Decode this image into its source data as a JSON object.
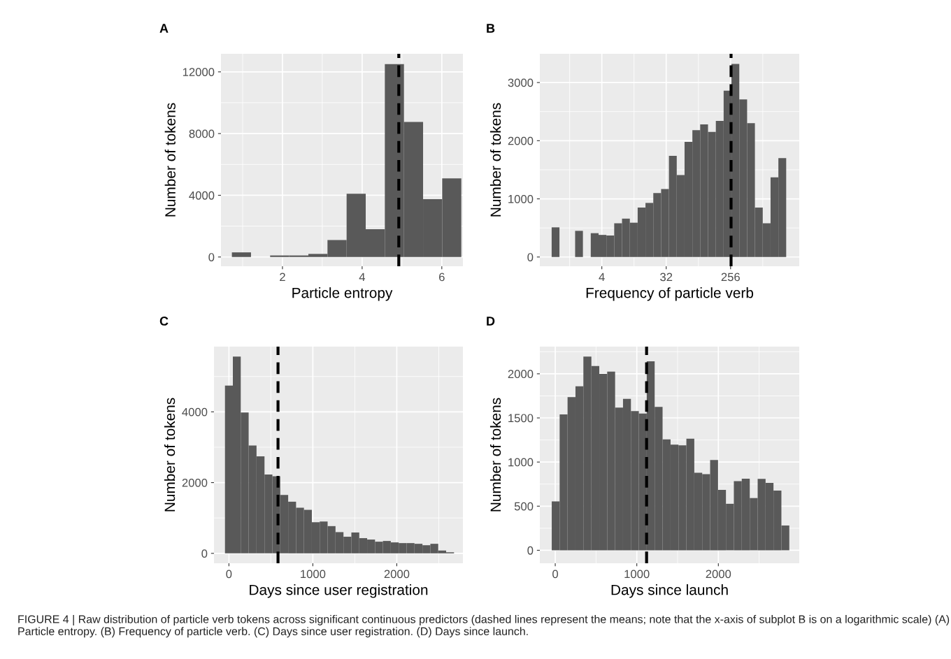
{
  "chart_data": [
    {
      "type": "histogram",
      "title": "A",
      "xlabel": "Particle entropy",
      "ylabel": "Number of tokens",
      "color": "#595959",
      "bins": [
        0.73,
        1.21,
        1.69,
        2.17,
        2.65,
        3.13,
        3.61,
        4.09,
        4.57,
        5.05,
        5.53,
        6.01,
        6.49
      ],
      "values": [
        300,
        0,
        100,
        100,
        200,
        1100,
        4100,
        1800,
        12500,
        8750,
        3750,
        5100
      ],
      "xlim": [
        0.456,
        6.53
      ],
      "ylim": [
        -600,
        13170
      ],
      "xticks": [
        2,
        4,
        6
      ],
      "yticks": [
        0,
        4000,
        8000,
        12000
      ],
      "grid": true,
      "ref_lines": [
        {
          "axis": "x",
          "value": 4.92,
          "color": "#000000",
          "line_style": "dashed"
        }
      ]
    },
    {
      "type": "histogram",
      "title": "B",
      "xlabel": "Frequency of particle verb",
      "ylabel": "Number of tokens",
      "color": "#595959",
      "log": "x",
      "bins": [
        0.791,
        1.018,
        1.311,
        1.688,
        2.172,
        2.797,
        3.6,
        4.633,
        5.966,
        7.679,
        9.884,
        12.73,
        16.38,
        21.09,
        27.14,
        34.95,
        44.97,
        57.89,
        74.54,
        95.94,
        123.5,
        159.0,
        204.6,
        263.4,
        339.1,
        436.5,
        561.8,
        723.5,
        931.2,
        1199,
        1543
      ],
      "values": [
        510,
        0,
        0,
        450,
        0,
        410,
        380,
        370,
        580,
        660,
        590,
        850,
        930,
        1100,
        1170,
        1740,
        1410,
        1980,
        2180,
        2280,
        2150,
        2340,
        2860,
        3320,
        2710,
        2300,
        850,
        580,
        1370,
        1700
      ],
      "xlim": [
        0.54,
        2353
      ],
      "ylim": [
        -159,
        3494
      ],
      "xticks": [
        4,
        32,
        256
      ],
      "yticks": [
        0,
        1000,
        2000,
        3000
      ],
      "grid": true,
      "ref_lines": [
        {
          "axis": "x",
          "value": 260,
          "color": "#000000",
          "line_style": "dashed"
        }
      ]
    },
    {
      "type": "histogram",
      "title": "C",
      "xlabel": "Days since user registration",
      "ylabel": "Number of tokens",
      "color": "#595959",
      "bins": [
        -47,
        47,
        141,
        235,
        329,
        424,
        518,
        612,
        706,
        800,
        894,
        988,
        1082,
        1176,
        1270,
        1365,
        1459,
        1553,
        1647,
        1741,
        1835,
        1929,
        2023,
        2117,
        2211,
        2306,
        2400,
        2494,
        2588,
        2682
      ],
      "values": [
        4740,
        5560,
        3980,
        3050,
        2740,
        2230,
        2180,
        1650,
        1460,
        1290,
        1230,
        880,
        900,
        770,
        600,
        470,
        590,
        430,
        390,
        330,
        350,
        310,
        290,
        290,
        270,
        230,
        270,
        80,
        30
      ],
      "xlim": [
        -178,
        2788
      ],
      "ylim": [
        -280,
        5843
      ],
      "xticks": [
        0,
        1000,
        2000
      ],
      "yticks": [
        0,
        2000,
        4000
      ],
      "grid": true,
      "ref_lines": [
        {
          "axis": "x",
          "value": 585,
          "color": "#000000",
          "line_style": "dashed"
        }
      ]
    },
    {
      "type": "histogram",
      "title": "D",
      "xlabel": "Days since launch",
      "ylabel": "Number of tokens",
      "color": "#595959",
      "bins": [
        -43,
        54,
        151,
        248,
        345,
        443,
        540,
        637,
        734,
        831,
        928,
        1025,
        1122,
        1219,
        1316,
        1414,
        1511,
        1608,
        1705,
        1802,
        1899,
        1996,
        2093,
        2190,
        2287,
        2385,
        2482,
        2579,
        2676,
        2773,
        2870
      ],
      "values": [
        554,
        1540,
        1735,
        1858,
        2195,
        2088,
        2000,
        2024,
        1617,
        1716,
        1577,
        1550,
        2142,
        1625,
        1256,
        1197,
        1189,
        1264,
        878,
        862,
        1023,
        685,
        527,
        784,
        811,
        592,
        809,
        763,
        677,
        281
      ],
      "xlim": [
        -189,
        2992
      ],
      "ylim": [
        -147,
        2308
      ],
      "xticks": [
        0,
        1000,
        2000
      ],
      "yticks": [
        0,
        500,
        1000,
        1500,
        2000
      ],
      "grid": true,
      "ref_lines": [
        {
          "axis": "x",
          "value": 1120,
          "color": "#000000",
          "line_style": "dashed"
        }
      ],
      "annotations": [
        "FIGURE 4 | Raw distribution of particle verb tokens across significant continuous predictors (dashed lines represent the means; note that the x-axis of subplot B is on a logarithmic scale) (A) Particle entropy. (B) Frequency of particle verb. (C) Days since user registration. (D) Days since launch."
      ]
    }
  ]
}
